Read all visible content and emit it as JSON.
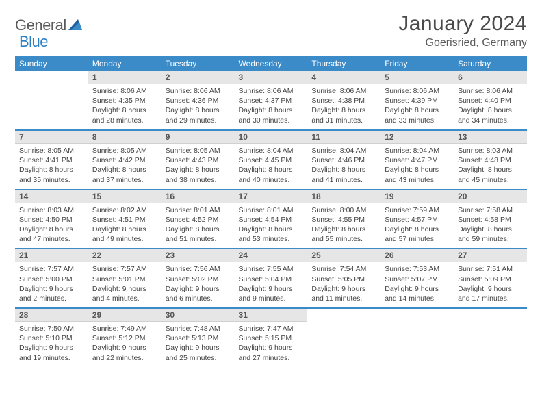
{
  "brand": {
    "part1": "General",
    "part2": "Blue"
  },
  "title": "January 2024",
  "location": "Goerisried, Germany",
  "colors": {
    "header_bg": "#3b8bc9",
    "header_text": "#ffffff",
    "daynum_bg": "#e6e6e6",
    "body_text": "#444444",
    "brand_gray": "#5a5a5a",
    "brand_blue": "#2b7fc3",
    "week_sep": "#3b8bc9"
  },
  "weekdays": [
    "Sunday",
    "Monday",
    "Tuesday",
    "Wednesday",
    "Thursday",
    "Friday",
    "Saturday"
  ],
  "weeks": [
    [
      {
        "n": "",
        "sr": "",
        "ss": "",
        "dl1": "",
        "dl2": ""
      },
      {
        "n": "1",
        "sr": "Sunrise: 8:06 AM",
        "ss": "Sunset: 4:35 PM",
        "dl1": "Daylight: 8 hours",
        "dl2": "and 28 minutes."
      },
      {
        "n": "2",
        "sr": "Sunrise: 8:06 AM",
        "ss": "Sunset: 4:36 PM",
        "dl1": "Daylight: 8 hours",
        "dl2": "and 29 minutes."
      },
      {
        "n": "3",
        "sr": "Sunrise: 8:06 AM",
        "ss": "Sunset: 4:37 PM",
        "dl1": "Daylight: 8 hours",
        "dl2": "and 30 minutes."
      },
      {
        "n": "4",
        "sr": "Sunrise: 8:06 AM",
        "ss": "Sunset: 4:38 PM",
        "dl1": "Daylight: 8 hours",
        "dl2": "and 31 minutes."
      },
      {
        "n": "5",
        "sr": "Sunrise: 8:06 AM",
        "ss": "Sunset: 4:39 PM",
        "dl1": "Daylight: 8 hours",
        "dl2": "and 33 minutes."
      },
      {
        "n": "6",
        "sr": "Sunrise: 8:06 AM",
        "ss": "Sunset: 4:40 PM",
        "dl1": "Daylight: 8 hours",
        "dl2": "and 34 minutes."
      }
    ],
    [
      {
        "n": "7",
        "sr": "Sunrise: 8:05 AM",
        "ss": "Sunset: 4:41 PM",
        "dl1": "Daylight: 8 hours",
        "dl2": "and 35 minutes."
      },
      {
        "n": "8",
        "sr": "Sunrise: 8:05 AM",
        "ss": "Sunset: 4:42 PM",
        "dl1": "Daylight: 8 hours",
        "dl2": "and 37 minutes."
      },
      {
        "n": "9",
        "sr": "Sunrise: 8:05 AM",
        "ss": "Sunset: 4:43 PM",
        "dl1": "Daylight: 8 hours",
        "dl2": "and 38 minutes."
      },
      {
        "n": "10",
        "sr": "Sunrise: 8:04 AM",
        "ss": "Sunset: 4:45 PM",
        "dl1": "Daylight: 8 hours",
        "dl2": "and 40 minutes."
      },
      {
        "n": "11",
        "sr": "Sunrise: 8:04 AM",
        "ss": "Sunset: 4:46 PM",
        "dl1": "Daylight: 8 hours",
        "dl2": "and 41 minutes."
      },
      {
        "n": "12",
        "sr": "Sunrise: 8:04 AM",
        "ss": "Sunset: 4:47 PM",
        "dl1": "Daylight: 8 hours",
        "dl2": "and 43 minutes."
      },
      {
        "n": "13",
        "sr": "Sunrise: 8:03 AM",
        "ss": "Sunset: 4:48 PM",
        "dl1": "Daylight: 8 hours",
        "dl2": "and 45 minutes."
      }
    ],
    [
      {
        "n": "14",
        "sr": "Sunrise: 8:03 AM",
        "ss": "Sunset: 4:50 PM",
        "dl1": "Daylight: 8 hours",
        "dl2": "and 47 minutes."
      },
      {
        "n": "15",
        "sr": "Sunrise: 8:02 AM",
        "ss": "Sunset: 4:51 PM",
        "dl1": "Daylight: 8 hours",
        "dl2": "and 49 minutes."
      },
      {
        "n": "16",
        "sr": "Sunrise: 8:01 AM",
        "ss": "Sunset: 4:52 PM",
        "dl1": "Daylight: 8 hours",
        "dl2": "and 51 minutes."
      },
      {
        "n": "17",
        "sr": "Sunrise: 8:01 AM",
        "ss": "Sunset: 4:54 PM",
        "dl1": "Daylight: 8 hours",
        "dl2": "and 53 minutes."
      },
      {
        "n": "18",
        "sr": "Sunrise: 8:00 AM",
        "ss": "Sunset: 4:55 PM",
        "dl1": "Daylight: 8 hours",
        "dl2": "and 55 minutes."
      },
      {
        "n": "19",
        "sr": "Sunrise: 7:59 AM",
        "ss": "Sunset: 4:57 PM",
        "dl1": "Daylight: 8 hours",
        "dl2": "and 57 minutes."
      },
      {
        "n": "20",
        "sr": "Sunrise: 7:58 AM",
        "ss": "Sunset: 4:58 PM",
        "dl1": "Daylight: 8 hours",
        "dl2": "and 59 minutes."
      }
    ],
    [
      {
        "n": "21",
        "sr": "Sunrise: 7:57 AM",
        "ss": "Sunset: 5:00 PM",
        "dl1": "Daylight: 9 hours",
        "dl2": "and 2 minutes."
      },
      {
        "n": "22",
        "sr": "Sunrise: 7:57 AM",
        "ss": "Sunset: 5:01 PM",
        "dl1": "Daylight: 9 hours",
        "dl2": "and 4 minutes."
      },
      {
        "n": "23",
        "sr": "Sunrise: 7:56 AM",
        "ss": "Sunset: 5:02 PM",
        "dl1": "Daylight: 9 hours",
        "dl2": "and 6 minutes."
      },
      {
        "n": "24",
        "sr": "Sunrise: 7:55 AM",
        "ss": "Sunset: 5:04 PM",
        "dl1": "Daylight: 9 hours",
        "dl2": "and 9 minutes."
      },
      {
        "n": "25",
        "sr": "Sunrise: 7:54 AM",
        "ss": "Sunset: 5:05 PM",
        "dl1": "Daylight: 9 hours",
        "dl2": "and 11 minutes."
      },
      {
        "n": "26",
        "sr": "Sunrise: 7:53 AM",
        "ss": "Sunset: 5:07 PM",
        "dl1": "Daylight: 9 hours",
        "dl2": "and 14 minutes."
      },
      {
        "n": "27",
        "sr": "Sunrise: 7:51 AM",
        "ss": "Sunset: 5:09 PM",
        "dl1": "Daylight: 9 hours",
        "dl2": "and 17 minutes."
      }
    ],
    [
      {
        "n": "28",
        "sr": "Sunrise: 7:50 AM",
        "ss": "Sunset: 5:10 PM",
        "dl1": "Daylight: 9 hours",
        "dl2": "and 19 minutes."
      },
      {
        "n": "29",
        "sr": "Sunrise: 7:49 AM",
        "ss": "Sunset: 5:12 PM",
        "dl1": "Daylight: 9 hours",
        "dl2": "and 22 minutes."
      },
      {
        "n": "30",
        "sr": "Sunrise: 7:48 AM",
        "ss": "Sunset: 5:13 PM",
        "dl1": "Daylight: 9 hours",
        "dl2": "and 25 minutes."
      },
      {
        "n": "31",
        "sr": "Sunrise: 7:47 AM",
        "ss": "Sunset: 5:15 PM",
        "dl1": "Daylight: 9 hours",
        "dl2": "and 27 minutes."
      },
      {
        "n": "",
        "sr": "",
        "ss": "",
        "dl1": "",
        "dl2": ""
      },
      {
        "n": "",
        "sr": "",
        "ss": "",
        "dl1": "",
        "dl2": ""
      },
      {
        "n": "",
        "sr": "",
        "ss": "",
        "dl1": "",
        "dl2": ""
      }
    ]
  ]
}
